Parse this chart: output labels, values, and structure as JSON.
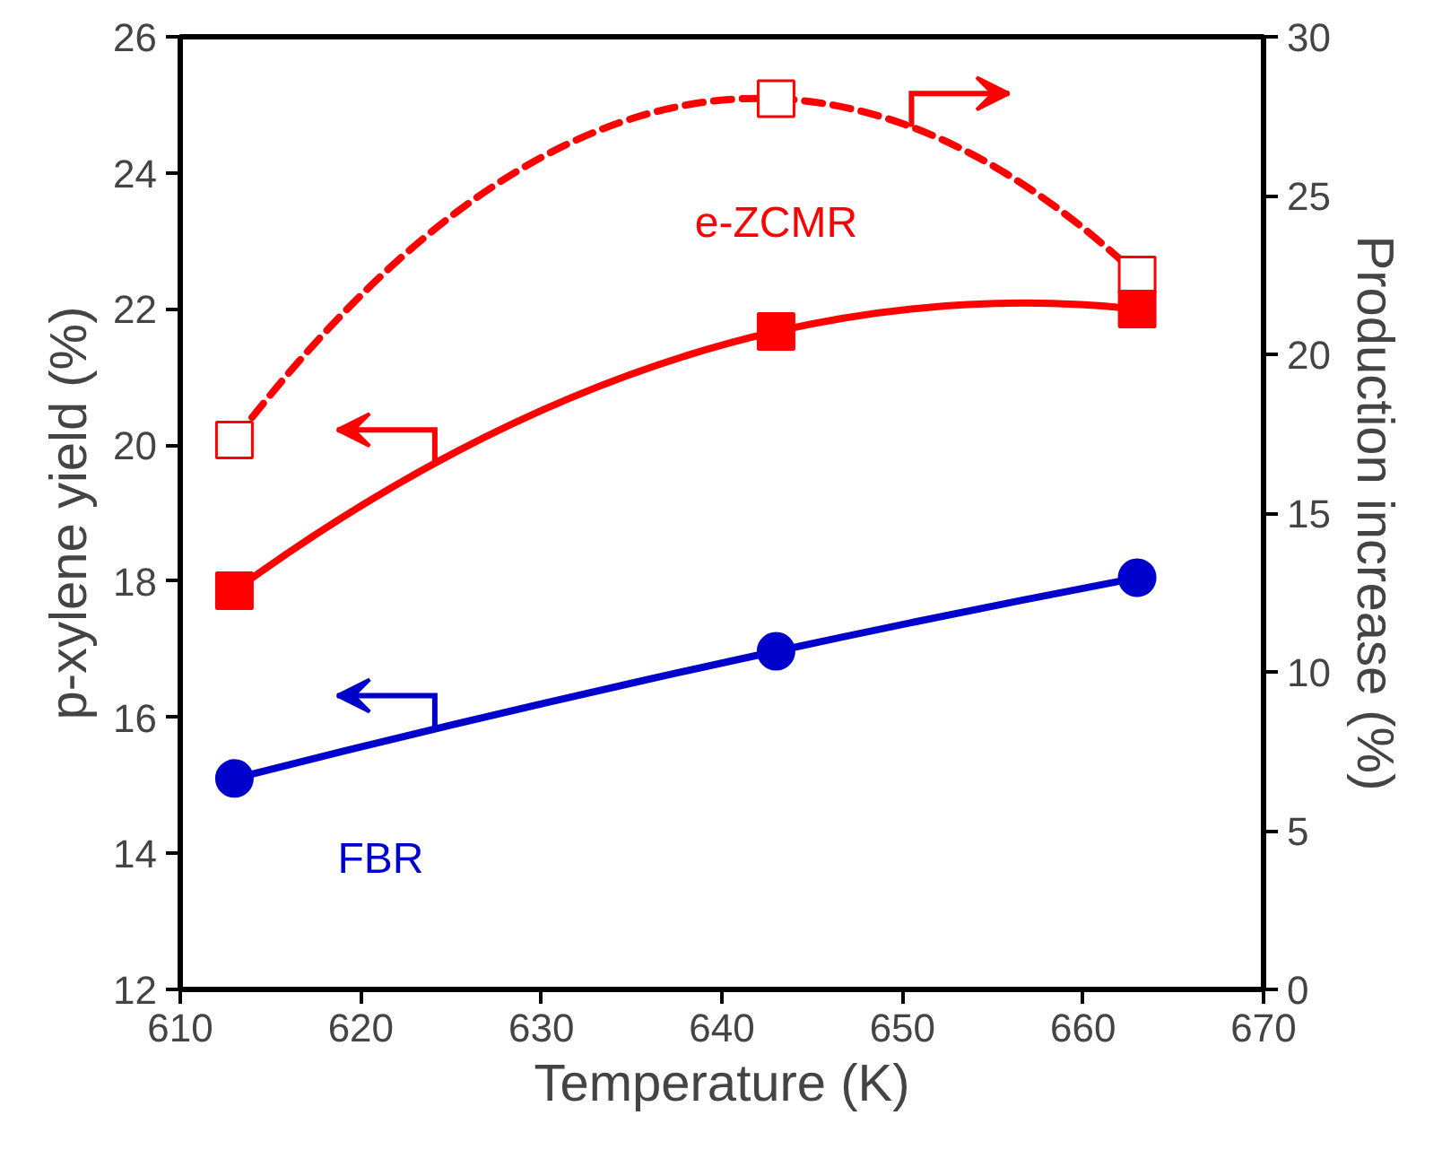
{
  "chart_data": {
    "type": "line",
    "xlabel": "Temperature (K)",
    "ylabel": "p-xylene yield (%)",
    "y2label": "Production increase (%)",
    "x": [
      613,
      643,
      663
    ],
    "xlim": [
      610,
      670
    ],
    "xticks": [
      610,
      620,
      630,
      640,
      650,
      660,
      670
    ],
    "ylim": [
      12,
      26
    ],
    "yticks": [
      12,
      14,
      16,
      18,
      20,
      22,
      24,
      26
    ],
    "y2lim": [
      0,
      30
    ],
    "y2ticks": [
      0,
      5,
      10,
      15,
      20,
      25,
      30
    ],
    "grid": false,
    "series": [
      {
        "name": "FBR",
        "color": "#0000cc",
        "values": [
          15.1,
          16.97,
          18.05
        ],
        "marker": "circle",
        "line_style": "solid"
      },
      {
        "color": "#ff0000",
        "values": [
          17.3,
          28.05,
          22.5
        ],
        "marker": "square",
        "line_style": "dashed",
        "axis": "y2"
      },
      {
        "name": "e-ZCMR",
        "color": "#ff0000",
        "values": [
          17.86,
          21.67,
          22.0
        ],
        "marker": "square",
        "line_style": "solid"
      }
    ]
  }
}
